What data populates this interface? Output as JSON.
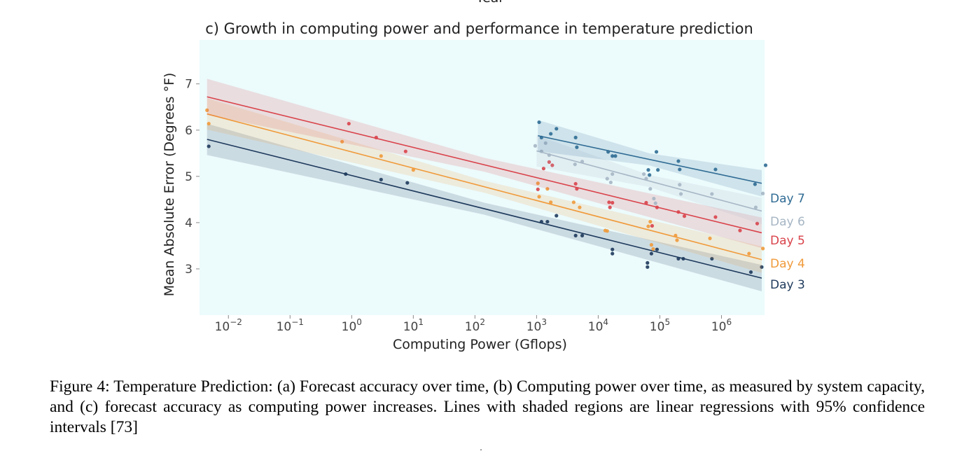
{
  "top_axis_cut_label": "Year",
  "chart_data": {
    "type": "scatter",
    "title": "c) Growth in computing power and performance in temperature prediction",
    "xlabel": "Computing Power (Gflops)",
    "ylabel": "Mean Absolute Error (Degrees °F)",
    "x_scale": "log",
    "xlim": [
      0.0034,
      5000000
    ],
    "ylim": [
      2,
      7.95
    ],
    "grid": false,
    "legend": "inline labels at right end of each regression line",
    "plot_background": "#ecfbfc",
    "x_ticks": [
      {
        "value": 0.01,
        "base": "10",
        "exp": "−2"
      },
      {
        "value": 0.1,
        "base": "10",
        "exp": "−1"
      },
      {
        "value": 1,
        "base": "10",
        "exp": "0"
      },
      {
        "value": 10,
        "base": "10",
        "exp": "1"
      },
      {
        "value": 100,
        "base": "10",
        "exp": "2"
      },
      {
        "value": 1000,
        "base": "10",
        "exp": "3"
      },
      {
        "value": 10000,
        "base": "10",
        "exp": "4"
      },
      {
        "value": 100000,
        "base": "10",
        "exp": "5"
      },
      {
        "value": 1000000,
        "base": "10",
        "exp": "6"
      }
    ],
    "y_ticks": [
      3,
      4,
      5,
      6,
      7
    ],
    "series": [
      {
        "name": "Day 3",
        "color": "#1e3a5c",
        "fit": {
          "x": [
            0.0045,
            4500000
          ],
          "y": [
            5.8,
            2.8
          ],
          "ci": 0.13
        },
        "points": [
          [
            0.0048,
            5.65
          ],
          [
            0.8,
            5.05
          ],
          [
            3,
            4.93
          ],
          [
            8,
            4.86
          ],
          [
            1200,
            4.02
          ],
          [
            1500,
            4.02
          ],
          [
            2100,
            4.15
          ],
          [
            4300,
            3.72
          ],
          [
            5500,
            3.72
          ],
          [
            17000,
            3.42
          ],
          [
            17000,
            3.33
          ],
          [
            63000,
            3.13
          ],
          [
            63000,
            3.04
          ],
          [
            73000,
            3.33
          ],
          [
            90000,
            3.42
          ],
          [
            200000,
            3.22
          ],
          [
            240000,
            3.22
          ],
          [
            700000,
            3.22
          ],
          [
            3000000,
            2.93
          ],
          [
            4500000,
            3.04
          ]
        ]
      },
      {
        "name": "Day 4",
        "color": "#f09a3a",
        "fit": {
          "x": [
            0.0045,
            4500000
          ],
          "y": [
            6.35,
            3.2
          ],
          "ci": 0.13
        },
        "points": [
          [
            0.0045,
            6.43
          ],
          [
            0.0048,
            6.14
          ],
          [
            0.7,
            5.75
          ],
          [
            3,
            5.44
          ],
          [
            10,
            5.14
          ],
          [
            1050,
            4.85
          ],
          [
            1100,
            4.56
          ],
          [
            1500,
            4.73
          ],
          [
            1700,
            4.44
          ],
          [
            4000,
            4.44
          ],
          [
            5000,
            4.33
          ],
          [
            13000,
            3.83
          ],
          [
            14000,
            3.82
          ],
          [
            65000,
            3.92
          ],
          [
            70000,
            4.02
          ],
          [
            73000,
            3.52
          ],
          [
            78000,
            3.43
          ],
          [
            180000,
            3.72
          ],
          [
            190000,
            3.62
          ],
          [
            650000,
            3.66
          ],
          [
            2800000,
            3.33
          ],
          [
            4700000,
            3.44
          ]
        ]
      },
      {
        "name": "Day 5",
        "color": "#d9434b",
        "fit": {
          "x": [
            0.0045,
            4500000
          ],
          "y": [
            6.72,
            3.78
          ],
          "ci": 0.15
        },
        "points": [
          [
            0.9,
            6.14
          ],
          [
            2.5,
            5.84
          ],
          [
            7.5,
            5.54
          ],
          [
            1050,
            4.72
          ],
          [
            1300,
            5.17
          ],
          [
            1600,
            5.31
          ],
          [
            1800,
            5.24
          ],
          [
            4300,
            4.84
          ],
          [
            4500,
            4.73
          ],
          [
            15000,
            4.44
          ],
          [
            15500,
            4.33
          ],
          [
            17000,
            4.43
          ],
          [
            60000,
            4.43
          ],
          [
            75000,
            3.93
          ],
          [
            90000,
            4.33
          ],
          [
            200000,
            4.23
          ],
          [
            250000,
            4.14
          ],
          [
            800000,
            4.12
          ],
          [
            2000000,
            3.83
          ],
          [
            3800000,
            3.98
          ]
        ]
      },
      {
        "name": "Day 6",
        "color": "#a6b6c4",
        "fit": {
          "x": [
            1000,
            4500000
          ],
          "y": [
            5.55,
            4.25
          ],
          "ci": 0.13
        },
        "points": [
          [
            950,
            5.66
          ],
          [
            1200,
            5.54
          ],
          [
            1400,
            5.72
          ],
          [
            1600,
            5.46
          ],
          [
            4200,
            5.26
          ],
          [
            5500,
            5.32
          ],
          [
            14000,
            4.95
          ],
          [
            16000,
            4.87
          ],
          [
            17000,
            5.05
          ],
          [
            55000,
            5.05
          ],
          [
            60000,
            4.95
          ],
          [
            70000,
            4.73
          ],
          [
            80000,
            4.52
          ],
          [
            85000,
            4.42
          ],
          [
            210000,
            4.82
          ],
          [
            220000,
            4.62
          ],
          [
            700000,
            4.62
          ],
          [
            3600000,
            4.33
          ],
          [
            4700000,
            4.63
          ]
        ]
      },
      {
        "name": "Day 7",
        "color": "#2f6b94",
        "fit": {
          "x": [
            1050,
            4500000
          ],
          "y": [
            5.88,
            4.85
          ],
          "ci": 0.13
        },
        "points": [
          [
            1100,
            6.17
          ],
          [
            1200,
            5.84
          ],
          [
            1700,
            5.92
          ],
          [
            2100,
            6.03
          ],
          [
            4300,
            5.84
          ],
          [
            4500,
            5.63
          ],
          [
            14500,
            5.53
          ],
          [
            17000,
            5.44
          ],
          [
            19000,
            5.44
          ],
          [
            65000,
            5.14
          ],
          [
            68000,
            5.03
          ],
          [
            88000,
            5.53
          ],
          [
            93000,
            5.14
          ],
          [
            200000,
            5.33
          ],
          [
            210000,
            5.15
          ],
          [
            800000,
            5.15
          ],
          [
            3500000,
            4.83
          ],
          [
            5200000,
            5.24
          ]
        ]
      }
    ]
  },
  "caption": "Figure 4: Temperature Prediction: (a) Forecast accuracy over time, (b) Computing power over time, as measured by system capacity, and (c) forecast accuracy as computing power increases. Lines with shaded regions are linear regressions with 95% confidence intervals [73]",
  "bottom_mark": "˙"
}
